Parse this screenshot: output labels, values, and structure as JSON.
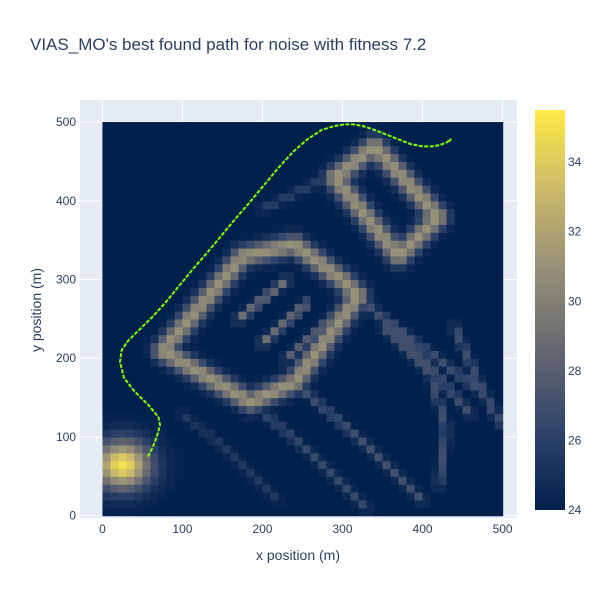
{
  "chart_data": {
    "type": "heatmap",
    "title": "VIAS_MO's best found path for noise with fitness 7.2",
    "xlabel": "x position (m)",
    "ylabel": "y position (m)",
    "xlim": [
      -28,
      518
    ],
    "ylim": [
      -3,
      528
    ],
    "x_ticks": [
      0,
      100,
      200,
      300,
      400,
      500
    ],
    "y_ticks": [
      0,
      100,
      200,
      300,
      400,
      500
    ],
    "grid": true,
    "heatmap": {
      "x_range": [
        0,
        500
      ],
      "y_range": [
        0,
        500
      ],
      "z_range": [
        24,
        35.5
      ],
      "colorscale": [
        "#00204c",
        "#31446b",
        "#666870",
        "#958f78",
        "#cbba69",
        "#ffe945"
      ],
      "colorbar_ticks": [
        24,
        26,
        28,
        30,
        32,
        34
      ],
      "features": [
        {
          "kind": "hotspot",
          "x": 25,
          "y": 65,
          "rx": 40,
          "ry": 35,
          "value": 35
        },
        {
          "kind": "loop",
          "points": [
            [
              75,
              210
            ],
            [
              175,
              330
            ],
            [
              240,
              345
            ],
            [
              300,
              300
            ],
            [
              320,
              280
            ],
            [
              240,
              170
            ],
            [
              185,
              145
            ],
            [
              75,
              210
            ]
          ],
          "value": 31
        },
        {
          "kind": "loop",
          "points": [
            [
              290,
              430
            ],
            [
              340,
              470
            ],
            [
              420,
              380
            ],
            [
              370,
              330
            ],
            [
              290,
              430
            ]
          ],
          "value": 31
        },
        {
          "kind": "line",
          "points": [
            [
              170,
              250
            ],
            [
              230,
              300
            ]
          ],
          "value": 29
        },
        {
          "kind": "line",
          "points": [
            [
              200,
              220
            ],
            [
              255,
              270
            ]
          ],
          "value": 29
        },
        {
          "kind": "line",
          "points": [
            [
              230,
              200
            ],
            [
              290,
              255
            ]
          ],
          "value": 28
        },
        {
          "kind": "line",
          "points": [
            [
              290,
              300
            ],
            [
              380,
              230
            ],
            [
              470,
              160
            ]
          ],
          "value": 27
        },
        {
          "kind": "line",
          "points": [
            [
              320,
              280
            ],
            [
              400,
              200
            ],
            [
              460,
              130
            ]
          ],
          "value": 27
        },
        {
          "kind": "line",
          "points": [
            [
              240,
              170
            ],
            [
              330,
              90
            ],
            [
              400,
              20
            ]
          ],
          "value": 27
        },
        {
          "kind": "line",
          "points": [
            [
              180,
              150
            ],
            [
              260,
              80
            ],
            [
              330,
              10
            ]
          ],
          "value": 26.5
        },
        {
          "kind": "line",
          "points": [
            [
              350,
              240
            ],
            [
              410,
              180
            ],
            [
              430,
              110
            ],
            [
              420,
              40
            ]
          ],
          "value": 27
        },
        {
          "kind": "line",
          "points": [
            [
              440,
              240
            ],
            [
              470,
              170
            ],
            [
              495,
              120
            ]
          ],
          "value": 27
        },
        {
          "kind": "line",
          "points": [
            [
              200,
              390
            ],
            [
              260,
              420
            ],
            [
              300,
              440
            ]
          ],
          "value": 26
        },
        {
          "kind": "line",
          "points": [
            [
              100,
              130
            ],
            [
              160,
              80
            ],
            [
              220,
              20
            ]
          ],
          "value": 25.5
        }
      ]
    },
    "series": [
      {
        "type": "line",
        "color": "#7fff00",
        "x": [
          57,
          62,
          68,
          72,
          70,
          58,
          40,
          27,
          22,
          24,
          32,
          45,
          62,
          80,
          96,
          112,
          130,
          148,
          166,
          184,
          202,
          220,
          238,
          256,
          274,
          290,
          302,
          314,
          325,
          340,
          355,
          370,
          385,
          400,
          412,
          422,
          430,
          435,
          433
        ],
        "y": [
          75,
          85,
          100,
          115,
          125,
          140,
          158,
          175,
          195,
          210,
          222,
          235,
          252,
          272,
          292,
          312,
          333,
          355,
          377,
          398,
          420,
          442,
          462,
          478,
          490,
          495,
          497,
          497,
          495,
          490,
          484,
          478,
          472,
          469,
          469,
          471,
          474,
          478,
          475
        ]
      }
    ]
  }
}
